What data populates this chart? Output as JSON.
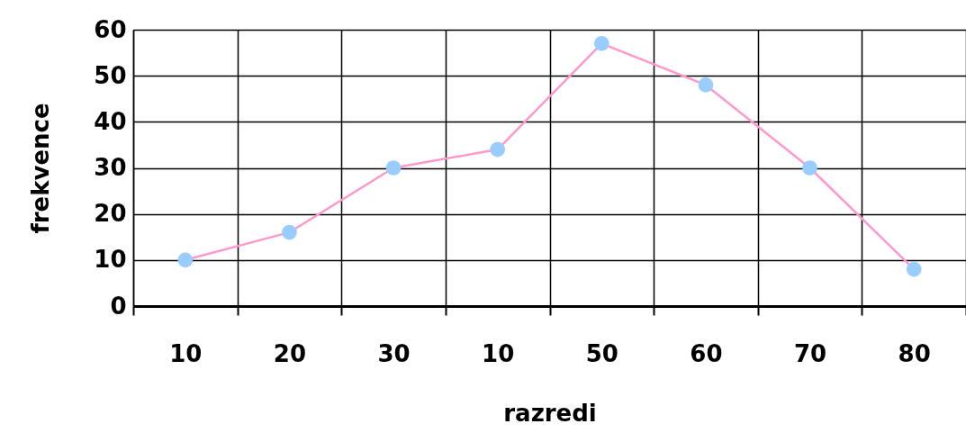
{
  "chart_data": {
    "type": "line",
    "xlabel": "razredi",
    "ylabel": "frekvence",
    "categories": [
      "10",
      "20",
      "30",
      "10",
      "50",
      "60",
      "70",
      "80"
    ],
    "series": [
      {
        "color": "#ff99cc",
        "colors": [
          "#99ccff",
          "#99ccff",
          "#99ccff",
          "#99ccff",
          "#99ccff",
          "#99ccff",
          "#99ccff",
          "#99ccff"
        ],
        "values": [
          10,
          16,
          30,
          34,
          57,
          48,
          30,
          8
        ]
      }
    ],
    "ylim": [
      0,
      60
    ],
    "yticks": [
      0,
      10,
      20,
      30,
      40,
      50,
      60
    ],
    "grid": true,
    "marker": "circle",
    "line_style": "solid"
  }
}
